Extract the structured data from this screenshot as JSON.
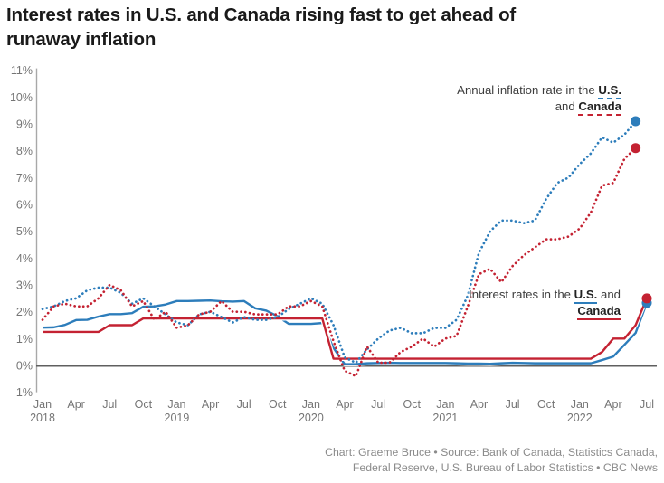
{
  "header": {
    "title_lines": [
      "Interest rates in U.S. and Canada rising fast to get ahead of",
      "runaway inflation"
    ]
  },
  "annotations": {
    "inflation": {
      "l1_text": "Annual inflation rate in the ",
      "l1_term": "U.S.",
      "l2_text": "and ",
      "l2_term": "Canada"
    },
    "rates": {
      "l1_text": "Interest rates in the ",
      "l1_term": "U.S.",
      "l1_suffix": " and",
      "l2_term": "Canada"
    }
  },
  "footer": {
    "lines": [
      "Chart: Graeme Bruce • Source: Bank of Canada, Statistics Canada,",
      "Federal Reserve, U.S. Bureau of Labor Statistics • CBC News"
    ]
  },
  "colors": {
    "us": "#2d7dbb",
    "canada": "#c42232",
    "zero_line": "#5f5f5f",
    "axis_line": "#a8a8a8",
    "tick_label": "#757575"
  },
  "chart_data": {
    "type": "line",
    "title": "Interest rates in U.S. and Canada rising fast to get ahead of runaway inflation",
    "x_unit": "month",
    "x_start": "Jan 2018",
    "x_end": "Jul 2022",
    "ylim": [
      -1,
      11
    ],
    "grid": "none",
    "y_ticks": [
      {
        "v": 11,
        "label": "11%"
      },
      {
        "v": 10,
        "label": "10%"
      },
      {
        "v": 9,
        "label": "9%"
      },
      {
        "v": 8,
        "label": "8%"
      },
      {
        "v": 7,
        "label": "7%"
      },
      {
        "v": 6,
        "label": "6%"
      },
      {
        "v": 5,
        "label": "5%"
      },
      {
        "v": 4,
        "label": "4%"
      },
      {
        "v": 3,
        "label": "3%"
      },
      {
        "v": 2,
        "label": "2%"
      },
      {
        "v": 1,
        "label": "1%"
      },
      {
        "v": 0,
        "label": "0%"
      },
      {
        "v": -1,
        "label": "-1%"
      }
    ],
    "x_ticks": [
      {
        "i": 0,
        "month": "Jan",
        "year": "2018"
      },
      {
        "i": 3,
        "month": "Apr"
      },
      {
        "i": 6,
        "month": "Jul"
      },
      {
        "i": 9,
        "month": "Oct"
      },
      {
        "i": 12,
        "month": "Jan",
        "year": "2019"
      },
      {
        "i": 15,
        "month": "Apr"
      },
      {
        "i": 18,
        "month": "Jul"
      },
      {
        "i": 21,
        "month": "Oct"
      },
      {
        "i": 24,
        "month": "Jan",
        "year": "2020"
      },
      {
        "i": 27,
        "month": "Apr"
      },
      {
        "i": 30,
        "month": "Jul"
      },
      {
        "i": 33,
        "month": "Oct"
      },
      {
        "i": 36,
        "month": "Jan",
        "year": "2021"
      },
      {
        "i": 39,
        "month": "Apr"
      },
      {
        "i": 42,
        "month": "Jul"
      },
      {
        "i": 45,
        "month": "Oct"
      },
      {
        "i": 48,
        "month": "Jan",
        "year": "2022"
      },
      {
        "i": 51,
        "month": "Apr"
      },
      {
        "i": 54,
        "month": "Jul"
      }
    ],
    "series": [
      {
        "id": "us-inflation",
        "name": "Annual inflation rate in the U.S.",
        "color": "#2d7dbb",
        "line": "dotted",
        "end_dot": true,
        "values": [
          2.1,
          2.2,
          2.4,
          2.5,
          2.8,
          2.9,
          2.9,
          2.7,
          2.3,
          2.5,
          2.2,
          1.9,
          1.6,
          1.5,
          1.9,
          2.0,
          1.8,
          1.6,
          1.8,
          1.7,
          1.7,
          1.8,
          2.1,
          2.3,
          2.5,
          2.3,
          1.5,
          0.3,
          0.1,
          0.6,
          1.0,
          1.3,
          1.4,
          1.2,
          1.2,
          1.4,
          1.4,
          1.7,
          2.6,
          4.2,
          5.0,
          5.4,
          5.4,
          5.3,
          5.4,
          6.2,
          6.8,
          7.0,
          7.5,
          7.9,
          8.5,
          8.3,
          8.6,
          9.1
        ]
      },
      {
        "id": "canada-inflation",
        "name": "Annual inflation rate in Canada",
        "color": "#c42232",
        "line": "dotted",
        "end_dot": true,
        "values": [
          1.7,
          2.2,
          2.3,
          2.2,
          2.2,
          2.5,
          3.0,
          2.8,
          2.2,
          2.4,
          1.7,
          2.0,
          1.4,
          1.5,
          1.9,
          2.0,
          2.4,
          2.0,
          2.0,
          1.9,
          1.9,
          1.9,
          2.2,
          2.2,
          2.4,
          2.2,
          0.9,
          -0.2,
          -0.4,
          0.7,
          0.1,
          0.1,
          0.5,
          0.7,
          1.0,
          0.7,
          1.0,
          1.1,
          2.2,
          3.4,
          3.6,
          3.1,
          3.7,
          4.1,
          4.4,
          4.7,
          4.7,
          4.8,
          5.1,
          5.7,
          6.7,
          6.8,
          7.7,
          8.1
        ]
      },
      {
        "id": "us-interest-rate",
        "name": "Interest rates in the U.S.",
        "color": "#2d7dbb",
        "line": "solid",
        "end_dot": true,
        "values": [
          1.41,
          1.42,
          1.51,
          1.69,
          1.7,
          1.82,
          1.91,
          1.91,
          1.95,
          2.19,
          2.2,
          2.27,
          2.4,
          2.4,
          2.41,
          2.42,
          2.39,
          2.38,
          2.4,
          2.13,
          2.04,
          1.83,
          1.55,
          1.55,
          1.55,
          1.58,
          0.65,
          0.05,
          0.05,
          0.08,
          0.09,
          0.1,
          0.09,
          0.09,
          0.09,
          0.09,
          0.09,
          0.08,
          0.07,
          0.07,
          0.06,
          0.08,
          0.1,
          0.09,
          0.08,
          0.08,
          0.08,
          0.08,
          0.08,
          0.08,
          0.2,
          0.33,
          0.77,
          1.21,
          2.33
        ]
      },
      {
        "id": "canada-interest-rate",
        "name": "Interest rates in Canada",
        "color": "#c42232",
        "line": "solid",
        "end_dot": true,
        "values": [
          1.25,
          1.25,
          1.25,
          1.25,
          1.25,
          1.25,
          1.5,
          1.5,
          1.5,
          1.75,
          1.75,
          1.75,
          1.75,
          1.75,
          1.75,
          1.75,
          1.75,
          1.75,
          1.75,
          1.75,
          1.75,
          1.75,
          1.75,
          1.75,
          1.75,
          1.75,
          0.25,
          0.25,
          0.25,
          0.25,
          0.25,
          0.25,
          0.25,
          0.25,
          0.25,
          0.25,
          0.25,
          0.25,
          0.25,
          0.25,
          0.25,
          0.25,
          0.25,
          0.25,
          0.25,
          0.25,
          0.25,
          0.25,
          0.25,
          0.25,
          0.5,
          1.0,
          1.0,
          1.5,
          2.5
        ]
      }
    ]
  }
}
